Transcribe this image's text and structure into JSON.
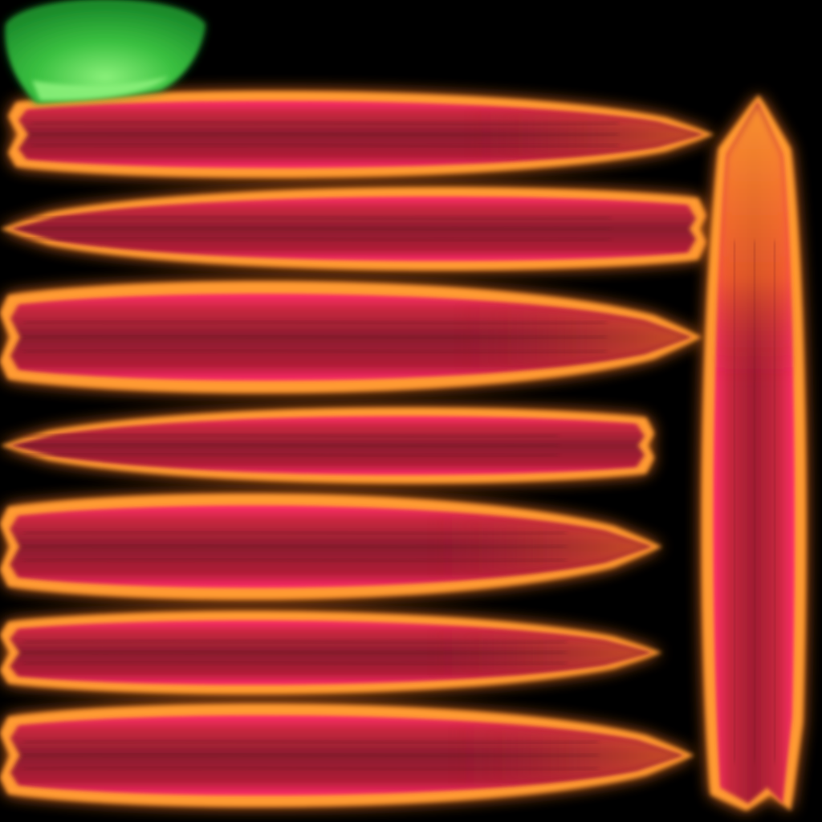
{
  "texture": {
    "background_color": "#000000",
    "palette": {
      "core_dark": "#7a1a2a",
      "core": "#b01e36",
      "core_light": "#c8283e",
      "magenta_edge": "#ff2a6a",
      "red_edge": "#ff3a1e",
      "orange_glow": "#ff7a20",
      "orange_bright": "#ff9a30",
      "green_dark": "#1a8a2a",
      "green": "#3ac040",
      "green_light": "#8af07a"
    },
    "petal_count": 8,
    "petals": [
      {
        "name": "petal-strip-1",
        "orientation": "horizontal",
        "tip": "right"
      },
      {
        "name": "petal-strip-2",
        "orientation": "horizontal",
        "tip": "left"
      },
      {
        "name": "petal-strip-3",
        "orientation": "horizontal",
        "tip": "right"
      },
      {
        "name": "petal-strip-4",
        "orientation": "horizontal",
        "tip": "left"
      },
      {
        "name": "petal-strip-5",
        "orientation": "horizontal",
        "tip": "right"
      },
      {
        "name": "petal-strip-6",
        "orientation": "horizontal",
        "tip": "right"
      },
      {
        "name": "petal-strip-7",
        "orientation": "horizontal",
        "tip": "right"
      },
      {
        "name": "petal-strip-vertical",
        "orientation": "vertical",
        "tip": "top"
      }
    ],
    "sepal": {
      "name": "green-sepal",
      "color": "#3ac040"
    }
  }
}
